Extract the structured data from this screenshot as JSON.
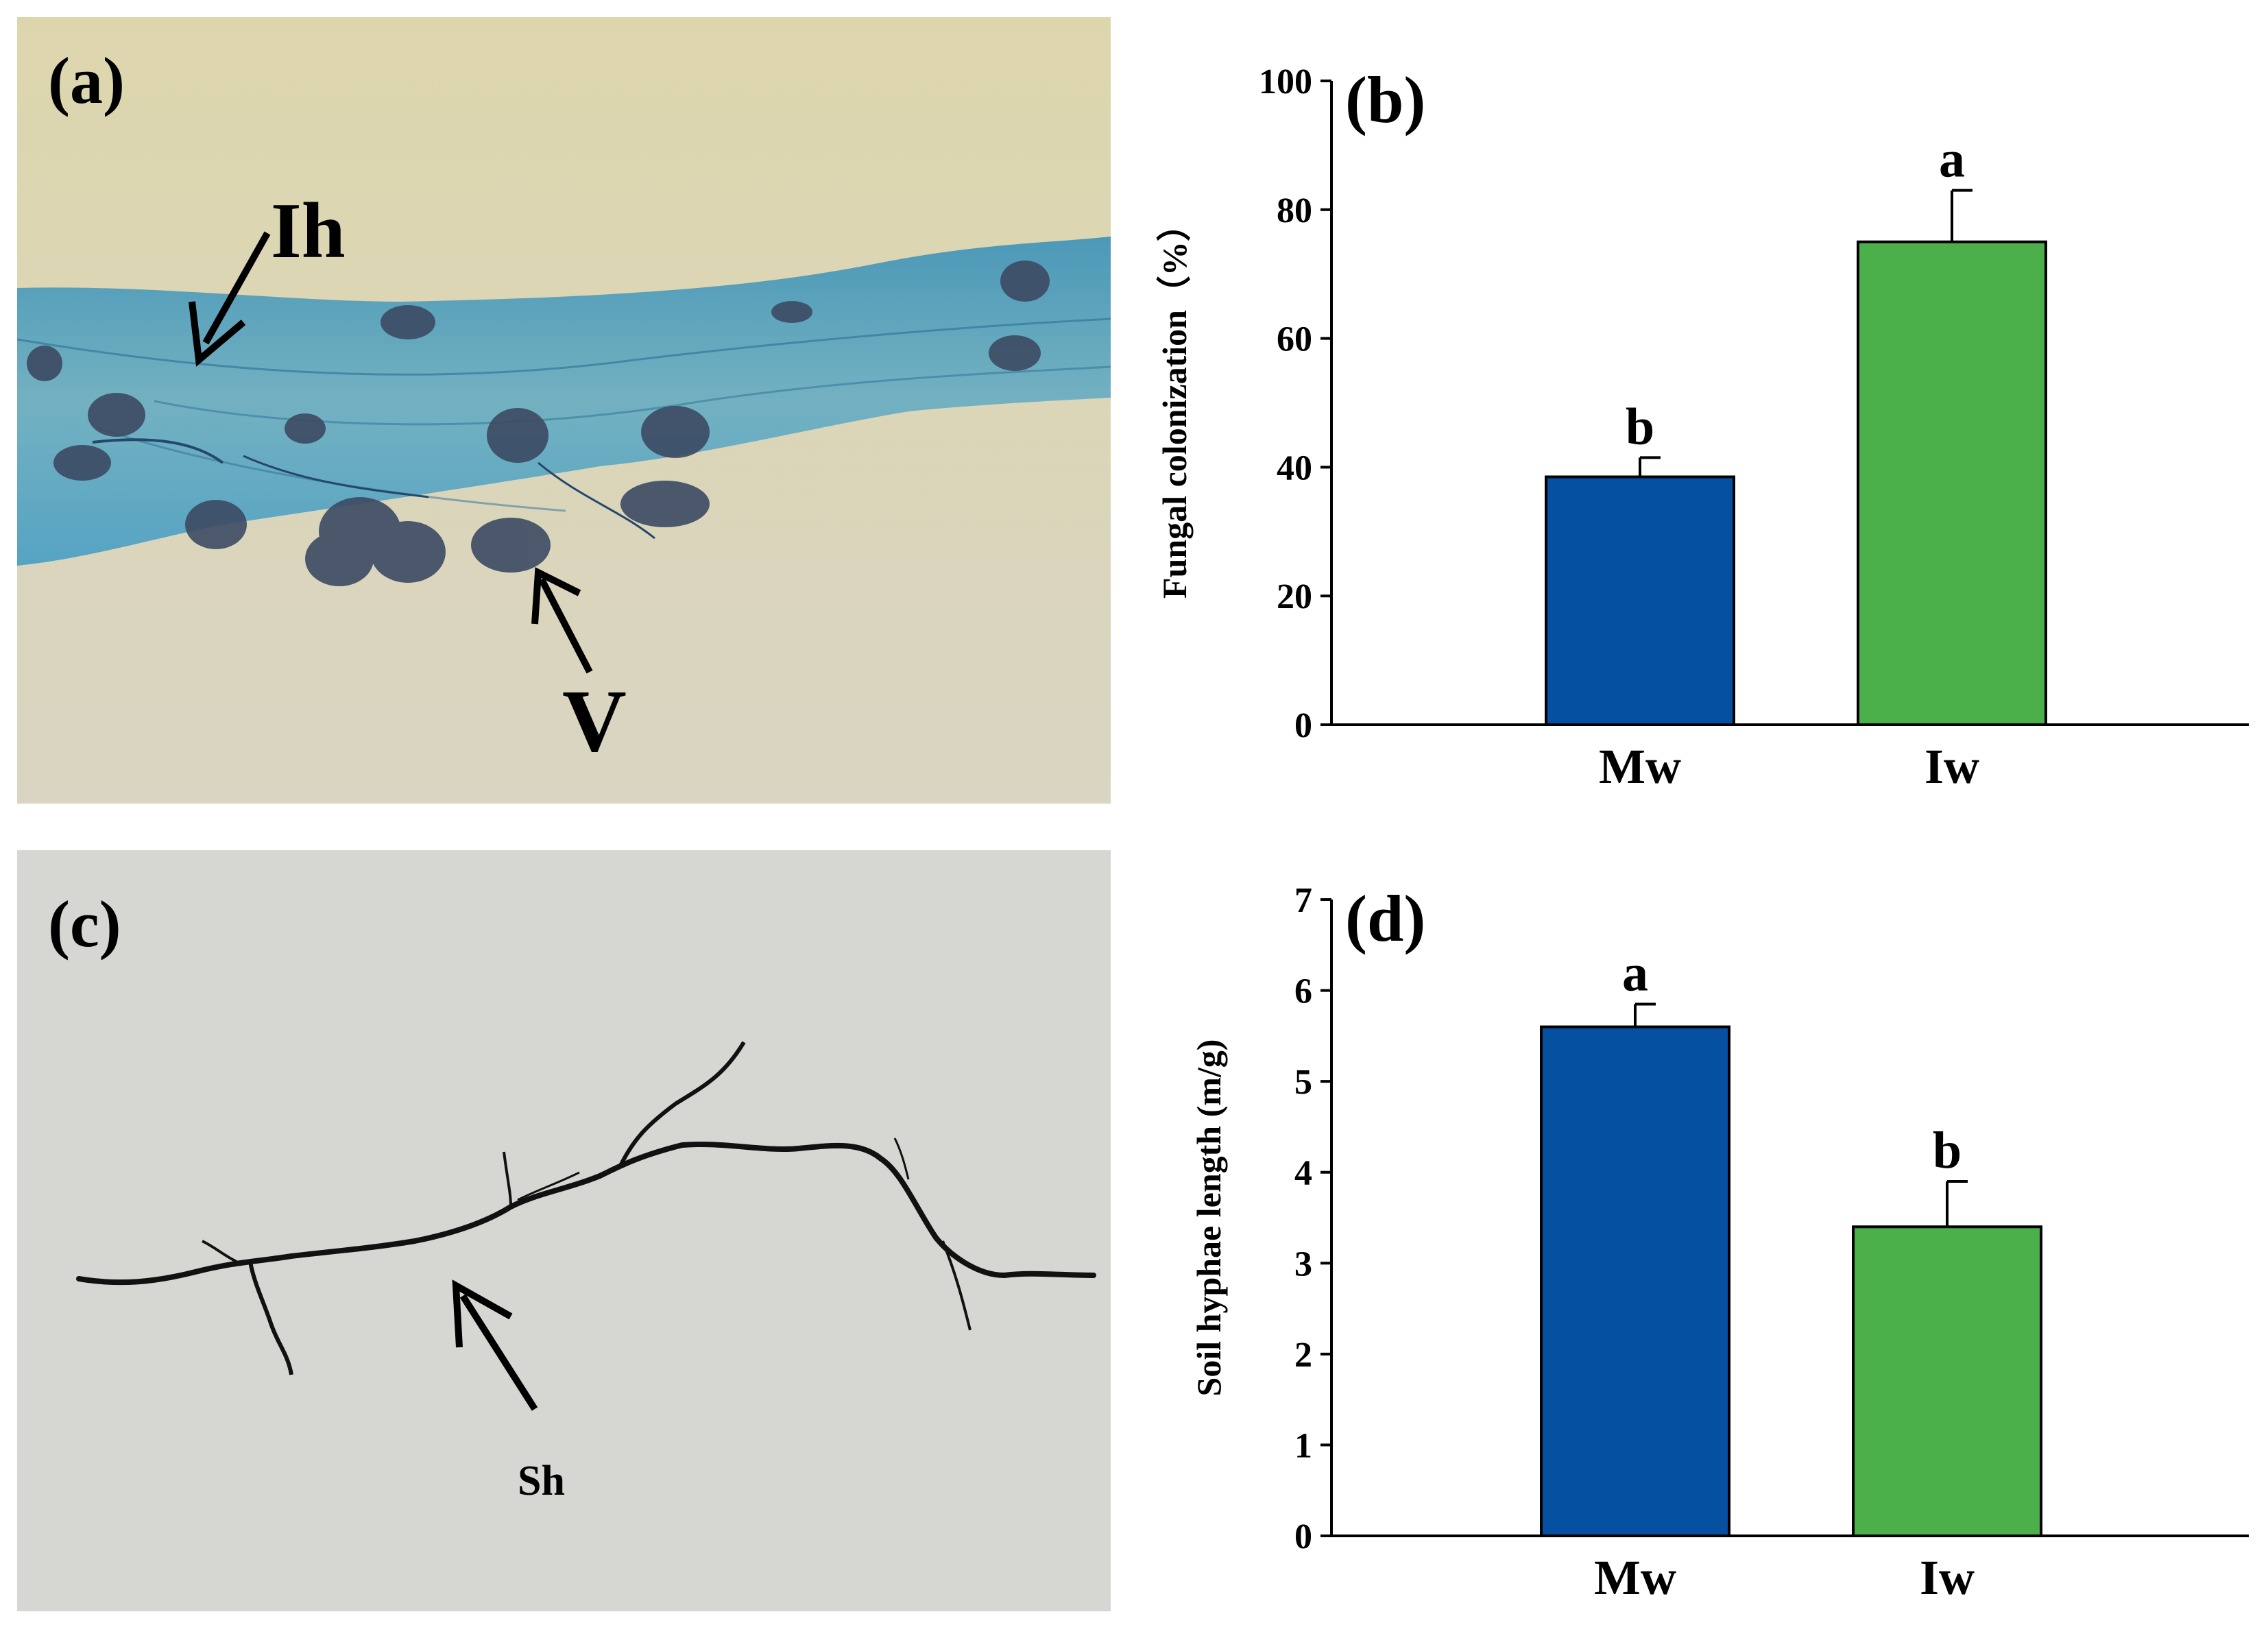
{
  "panel_a": {
    "label": "(a)",
    "annotations": [
      "Ih",
      "V"
    ]
  },
  "panel_c": {
    "label": "(c)",
    "annotations": [
      "Sh"
    ]
  },
  "colors": {
    "mw": "#0650a2",
    "iw": "#4cb04a",
    "root_bg": "#ddd7b4",
    "root_tissue": "#4ea2c6",
    "soil_bg": "#d6d6d3"
  },
  "chart_data": [
    {
      "panel_label": "(b)",
      "type": "bar",
      "categories": [
        "Mw",
        "Iw"
      ],
      "values": [
        38.5,
        75
      ],
      "errors": [
        3,
        8
      ],
      "significance": [
        "b",
        "a"
      ],
      "ylabel": "Fungal colonization（%）",
      "ylim": [
        0,
        100
      ],
      "yticks": [
        0,
        20,
        40,
        60,
        80,
        100
      ],
      "grid": false
    },
    {
      "panel_label": "(d)",
      "type": "bar",
      "categories": [
        "Mw",
        "Iw"
      ],
      "values": [
        5.6,
        3.4
      ],
      "errors": [
        0.25,
        0.5
      ],
      "significance": [
        "a",
        "b"
      ],
      "ylabel": "Soil hyphae length (m/g)",
      "ylim": [
        0,
        7
      ],
      "yticks": [
        0,
        1,
        2,
        3,
        4,
        5,
        6,
        7
      ],
      "grid": false
    }
  ]
}
